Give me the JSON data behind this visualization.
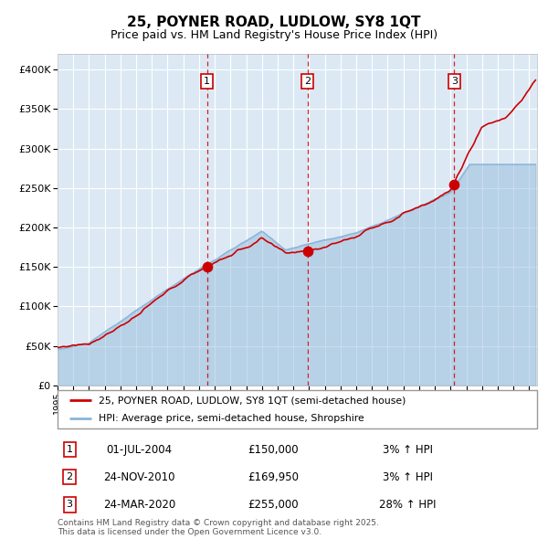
{
  "title": "25, POYNER ROAD, LUDLOW, SY8 1QT",
  "subtitle": "Price paid vs. HM Land Registry's House Price Index (HPI)",
  "legend_house": "25, POYNER ROAD, LUDLOW, SY8 1QT (semi-detached house)",
  "legend_hpi": "HPI: Average price, semi-detached house, Shropshire",
  "footer": "Contains HM Land Registry data © Crown copyright and database right 2025.\nThis data is licensed under the Open Government Licence v3.0.",
  "transactions": [
    {
      "num": 1,
      "date": "01-JUL-2004",
      "year": 2004.5,
      "price": 150000,
      "pct": "3%",
      "dir": "↑"
    },
    {
      "num": 2,
      "date": "24-NOV-2010",
      "year": 2010.9,
      "price": 169950,
      "pct": "3%",
      "dir": "↑"
    },
    {
      "num": 3,
      "date": "24-MAR-2020",
      "year": 2020.23,
      "price": 255000,
      "pct": "28%",
      "dir": "↑"
    }
  ],
  "ylim": [
    0,
    420000
  ],
  "xlim_start": 1995.0,
  "xlim_end": 2025.5,
  "bg_color": "#dce9f5",
  "house_color": "#cc0000",
  "hpi_color": "#8ab4d8",
  "grid_color": "#ffffff",
  "vline_color": "#cc0000",
  "box_color": "#cc0000",
  "title_fontsize": 11,
  "subtitle_fontsize": 9
}
